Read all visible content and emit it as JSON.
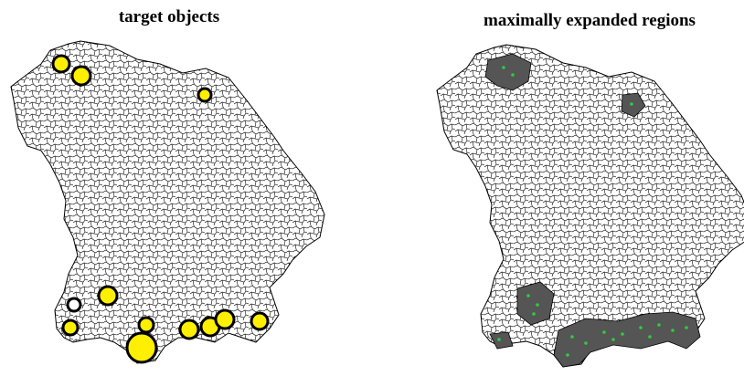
{
  "panels": [
    {
      "title": "target objects"
    },
    {
      "title": "maximally expanded regions"
    }
  ]
}
